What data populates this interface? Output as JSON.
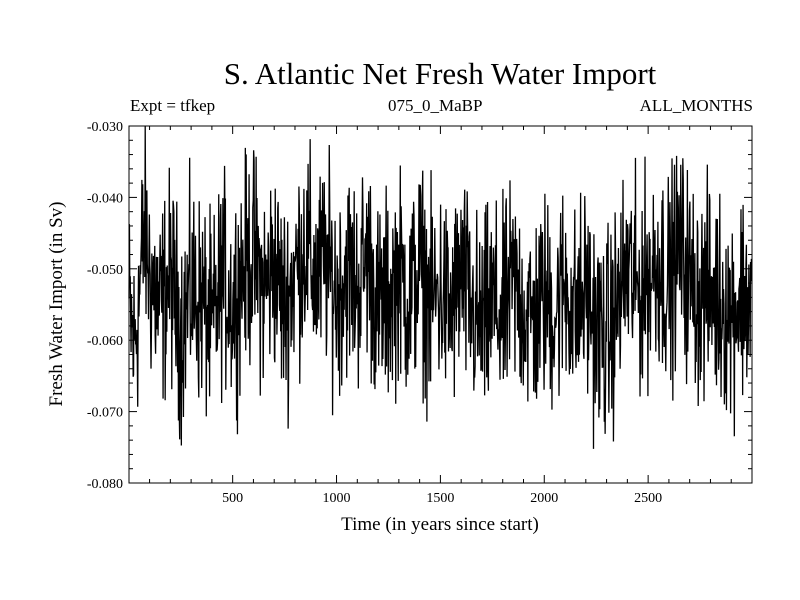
{
  "header": {
    "title": "S. Atlantic Net Fresh Water Import",
    "left_label": "Expt = tfkep",
    "center_label": "075_0_MaBP",
    "right_label": "ALL_MONTHS"
  },
  "chart_data": {
    "type": "line",
    "title": "S. Atlantic Net Fresh Water Import",
    "xlabel": "Time (in years since start)",
    "ylabel": "Fresh Water Import (in Sv)",
    "xlim": [
      1,
      3000
    ],
    "ylim": [
      -0.08,
      -0.03
    ],
    "xticks": [
      500,
      1000,
      1500,
      2000,
      2500
    ],
    "xtick_labels": [
      "500",
      "1000",
      "1500",
      "2000",
      "2500"
    ],
    "yticks": [
      -0.08,
      -0.07,
      -0.06,
      -0.05,
      -0.04,
      -0.03
    ],
    "ytick_labels": [
      "-0.080",
      "-0.070",
      "-0.060",
      "-0.050",
      "-0.040",
      "-0.030"
    ],
    "grid": false,
    "line_color": "#000000",
    "series": [
      {
        "x": [
          1,
          25,
          50,
          75,
          100,
          150,
          200,
          250,
          300,
          350,
          400,
          450,
          500,
          550,
          600,
          650,
          700,
          750,
          800,
          850,
          900,
          950,
          1000,
          1050,
          1100,
          1150,
          1200,
          1250,
          1300,
          1350,
          1400,
          1450,
          1500,
          1550,
          1600,
          1650,
          1700,
          1750,
          1800,
          1850,
          1900,
          1950,
          2000,
          2050,
          2100,
          2150,
          2200,
          2250,
          2300,
          2350,
          2400,
          2450,
          2500,
          2550,
          2600,
          2650,
          2700,
          2750,
          2800,
          2850,
          2900,
          2950,
          3000
        ],
        "values": [
          -0.0555,
          -0.061,
          -0.054,
          -0.044,
          -0.0505,
          -0.056,
          -0.051,
          -0.0585,
          -0.053,
          -0.0545,
          -0.059,
          -0.051,
          -0.055,
          -0.05,
          -0.048,
          -0.053,
          -0.0495,
          -0.0555,
          -0.0505,
          -0.0465,
          -0.0515,
          -0.049,
          -0.0535,
          -0.05,
          -0.0525,
          -0.048,
          -0.056,
          -0.054,
          -0.0505,
          -0.0545,
          -0.0495,
          -0.055,
          -0.053,
          -0.0565,
          -0.051,
          -0.056,
          -0.0585,
          -0.055,
          -0.057,
          -0.052,
          -0.0555,
          -0.0575,
          -0.054,
          -0.056,
          -0.052,
          -0.0565,
          -0.053,
          -0.0585,
          -0.06,
          -0.0555,
          -0.05,
          -0.0535,
          -0.051,
          -0.049,
          -0.052,
          -0.047,
          -0.0515,
          -0.054,
          -0.053,
          -0.0545,
          -0.056,
          -0.0535,
          -0.0545
        ],
        "fluctuation_amplitude": 0.008
      }
    ]
  }
}
